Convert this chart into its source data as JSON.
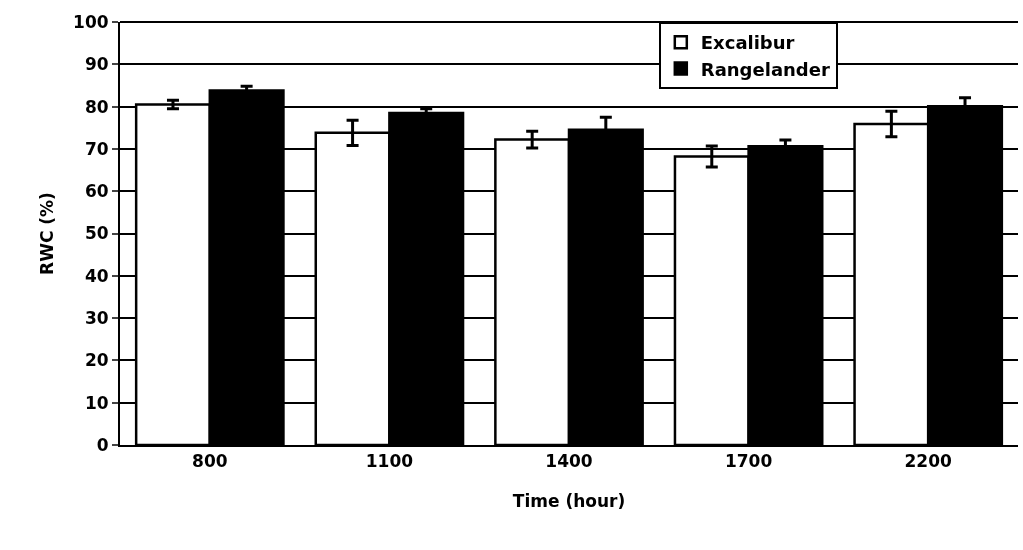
{
  "chart_data": {
    "type": "bar",
    "xlabel": "Time (hour)",
    "ylabel": "RWC (%)",
    "categories": [
      "800",
      "1100",
      "1400",
      "1700",
      "2200"
    ],
    "series": [
      {
        "name": "Excalibur",
        "color": "#ffffff",
        "values": [
          80.5,
          73.8,
          72.2,
          68.2,
          75.9
        ],
        "errors": [
          1,
          3,
          2,
          2.5,
          3
        ]
      },
      {
        "name": "Rangelander",
        "color": "#000000",
        "values": [
          83.8,
          78.5,
          74.5,
          70.6,
          80.1
        ],
        "errors": [
          1,
          1,
          3,
          1.5,
          2
        ]
      }
    ],
    "ylim": [
      0,
      100
    ],
    "yticks": [
      0,
      10,
      20,
      30,
      40,
      50,
      60,
      70,
      80,
      90,
      100
    ],
    "grid": "y",
    "legend": "top right"
  }
}
